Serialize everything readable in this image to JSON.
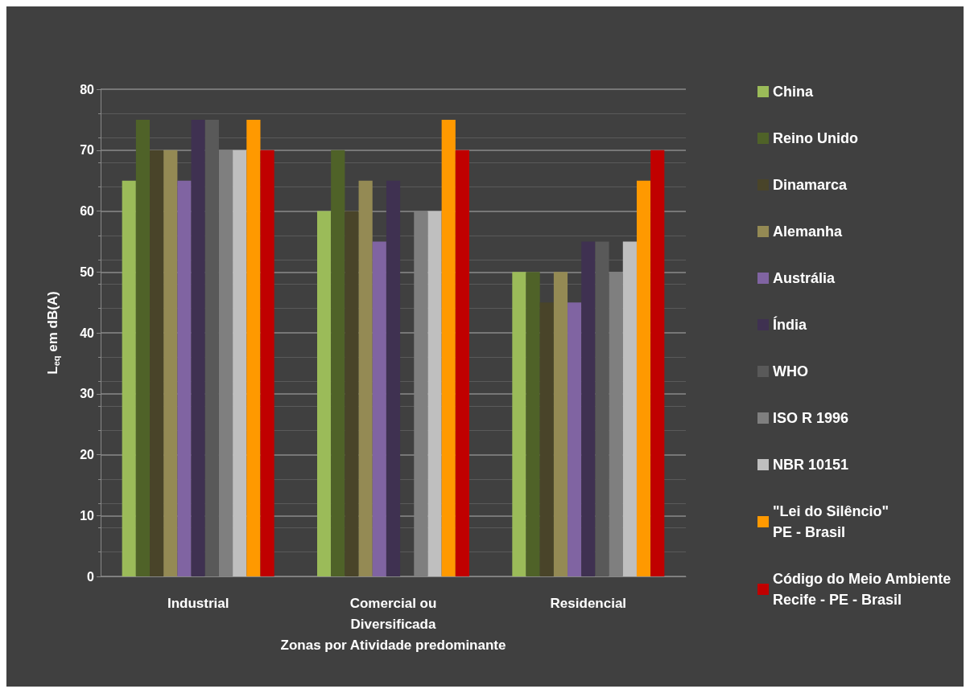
{
  "chart_data": {
    "type": "bar",
    "xlabel": "Zonas por Atividade predominante",
    "ylabel": "L$_{eq}$ em dB(A)",
    "categories": [
      "Industrial",
      "Comercial ou\nDiversificada",
      "Residencial"
    ],
    "series": [
      {
        "name": "China",
        "color": "#9bbb59",
        "values": [
          65,
          60,
          50
        ]
      },
      {
        "name": "Reino Unido",
        "color": "#4f6228",
        "values": [
          75,
          70,
          50
        ]
      },
      {
        "name": "Dinamarca",
        "color": "#494429",
        "values": [
          70,
          60,
          45
        ]
      },
      {
        "name": "Alemanha",
        "color": "#948a54",
        "values": [
          70,
          65,
          50
        ]
      },
      {
        "name": "Austrália",
        "color": "#8064a2",
        "values": [
          65,
          55,
          45
        ]
      },
      {
        "name": "Índia",
        "color": "#3f3151",
        "values": [
          75,
          65,
          55
        ]
      },
      {
        "name": "WHO",
        "color": "#595959",
        "values": [
          75,
          null,
          55
        ]
      },
      {
        "name": "ISO R 1996",
        "color": "#7f7f7f",
        "values": [
          70,
          60,
          50
        ]
      },
      {
        "name": "NBR 10151",
        "color": "#bfbfbf",
        "values": [
          70,
          60,
          55
        ]
      },
      {
        "name": "\"Lei do Silêncio\"\nPE - Brasil",
        "color": "#ff9900",
        "values": [
          75,
          75,
          65
        ]
      },
      {
        "name": "Código do Meio Ambiente\nRecife - PE - Brasil",
        "color": "#c00000",
        "values": [
          70,
          70,
          70
        ]
      }
    ],
    "ylim": [
      0,
      80
    ],
    "yticks": [
      0,
      10,
      20,
      30,
      40,
      50,
      60,
      70,
      80
    ],
    "grid": "y",
    "legend": "right"
  }
}
